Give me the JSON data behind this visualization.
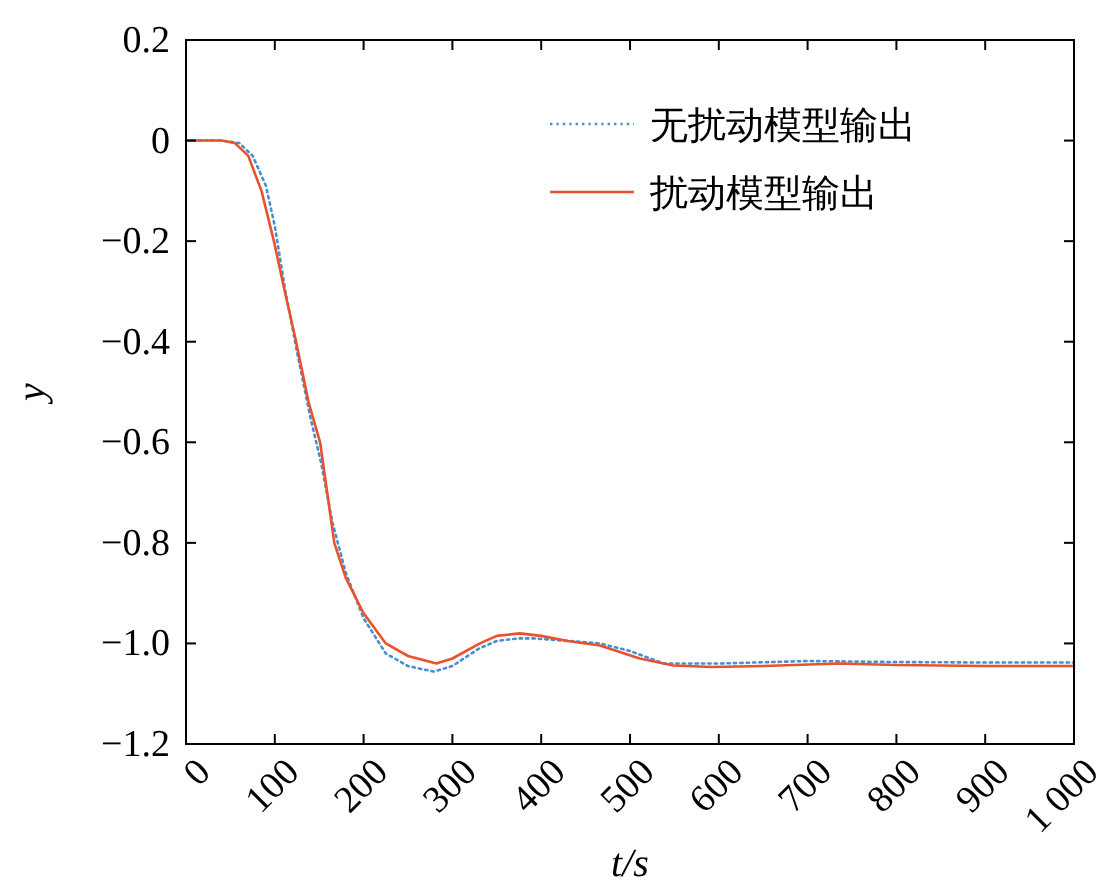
{
  "chart_data": {
    "type": "line",
    "xlabel": "t/s",
    "ylabel": "y",
    "xlim": [
      0,
      1000
    ],
    "ylim": [
      -1.2,
      0.2
    ],
    "xticks": [
      0,
      100,
      200,
      300,
      400,
      500,
      600,
      700,
      800,
      900,
      {
        "value": 1000,
        "label": "1 000"
      }
    ],
    "yticks": [
      {
        "value": -1.2,
        "label": "−1.2"
      },
      {
        "value": -1.0,
        "label": "−1.0"
      },
      {
        "value": -0.8,
        "label": "−0.8"
      },
      {
        "value": -0.6,
        "label": "−0.6"
      },
      {
        "value": -0.4,
        "label": "−0.4"
      },
      {
        "value": -0.2,
        "label": "−0.2"
      },
      0,
      0.2
    ],
    "grid": false,
    "legend": "top right",
    "series": [
      {
        "name": "无扰动模型输出",
        "color": "#4a90d0",
        "line_style": "dotted",
        "x": [
          0,
          40,
          60,
          75,
          90,
          100,
          112,
          125,
          140,
          152,
          165,
          180,
          200,
          225,
          250,
          279,
          300,
          330,
          350,
          375,
          392,
          430,
          466,
          500,
          538,
          600,
          700,
          800,
          900,
          1000
        ],
        "values": [
          0,
          0,
          -0.005,
          -0.03,
          -0.09,
          -0.17,
          -0.3,
          -0.42,
          -0.55,
          -0.64,
          -0.76,
          -0.86,
          -0.95,
          -1.02,
          -1.045,
          -1.056,
          -1.045,
          -1.01,
          -0.995,
          -0.99,
          -0.99,
          -0.995,
          -1.0,
          -1.015,
          -1.04,
          -1.04,
          -1.035,
          -1.037,
          -1.038,
          -1.038
        ]
      },
      {
        "name": "扰动模型输出",
        "color": "#e8522c",
        "line_style": "solid",
        "x": [
          0,
          40,
          55,
          70,
          85,
          99,
          110,
          124,
          138,
          151,
          167,
          180,
          200,
          225,
          250,
          282,
          300,
          331,
          350,
          376,
          400,
          430,
          466,
          511,
          549,
          593,
          650,
          736,
          800,
          900,
          1000
        ],
        "values": [
          0,
          0,
          -0.005,
          -0.03,
          -0.1,
          -0.2,
          -0.29,
          -0.4,
          -0.52,
          -0.6,
          -0.8,
          -0.87,
          -0.94,
          -1.0,
          -1.025,
          -1.04,
          -1.03,
          -1.0,
          -0.985,
          -0.98,
          -0.985,
          -0.995,
          -1.004,
          -1.03,
          -1.044,
          -1.047,
          -1.045,
          -1.04,
          -1.043,
          -1.045,
          -1.045
        ]
      }
    ]
  }
}
